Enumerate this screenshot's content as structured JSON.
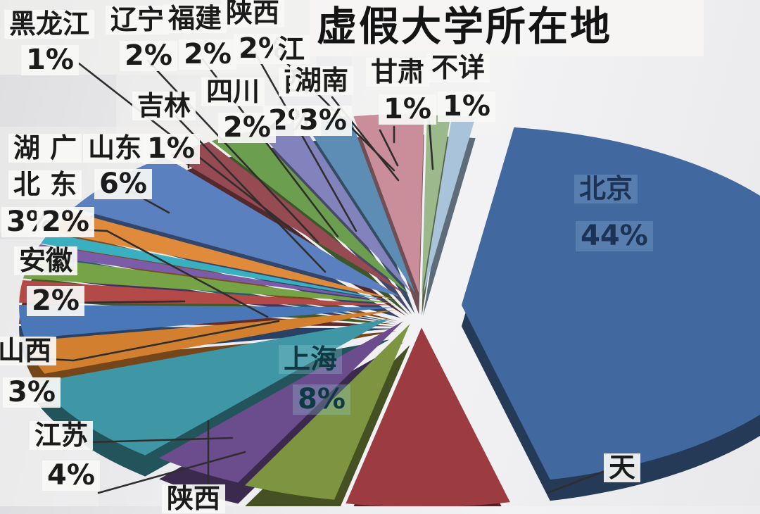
{
  "title": "虚假大学所在地",
  "chart_data": {
    "type": "pie",
    "style": "3d-exploded-pie",
    "title": "虚假大学所在地",
    "unit": "%",
    "legend_position": "none",
    "labels_outside_with_leader_lines": true,
    "slices": [
      {
        "name": "北京",
        "value": 44,
        "pct": "44%",
        "color": "#41699f"
      },
      {
        "name": "天津",
        "value": 7,
        "pct": "",
        "color": "#9c3b40"
      },
      {
        "name": "陕西",
        "value": 4,
        "pct": "",
        "color": "#7d9440"
      },
      {
        "name": "江苏",
        "value": 4,
        "pct": "4%",
        "color": "#6b4d8e"
      },
      {
        "name": "上海",
        "value": 8,
        "pct": "8%",
        "color": "#3f97a6"
      },
      {
        "name": "山西",
        "value": 3,
        "pct": "3%",
        "color": "#d2802f"
      },
      {
        "name": "湖北",
        "value": 3,
        "pct": "3%",
        "color": "#4a77b8"
      },
      {
        "name": "安徽",
        "value": 2,
        "pct": "2%",
        "color": "#b34a47"
      },
      {
        "name": "广东",
        "value": 2,
        "pct": "2%",
        "color": "#76a345"
      },
      {
        "name": "吉林",
        "value": 1,
        "pct": "1%",
        "color": "#7b5ca9"
      },
      {
        "name": "黑龙江",
        "value": 1,
        "pct": "1%",
        "color": "#3aafc0"
      },
      {
        "name": "辽宁",
        "value": 2,
        "pct": "2%",
        "color": "#e08a3c"
      },
      {
        "name": "山东",
        "value": 6,
        "pct": "6%",
        "color": "#5b80c0"
      },
      {
        "name": "福建",
        "value": 2,
        "pct": "2%",
        "color": "#964a52"
      },
      {
        "name": "陕西",
        "value": 2,
        "pct": "2%",
        "color": "#6b9e4e"
      },
      {
        "name": "四川",
        "value": 2,
        "pct": "2%",
        "color": "#8283bd"
      },
      {
        "name": "江西",
        "value": 2,
        "pct": "2%",
        "color": "#5d8cb5"
      },
      {
        "name": "湖南",
        "value": 3,
        "pct": "3%",
        "color": "#c98e99"
      },
      {
        "name": "甘肃",
        "value": 1,
        "pct": "1%",
        "color": "#9cb98b"
      },
      {
        "name": "不详",
        "value": 1,
        "pct": "1%",
        "color": "#a9c4da"
      }
    ]
  },
  "colors": {
    "background": "#ebebed",
    "leader_line": "#2f2e2c",
    "label_box": "#f6f5f3",
    "label_text": "#1b1b1b",
    "title_text": "#141414",
    "beijing_label_text": "#1c3355",
    "shanghai_label_text": "#0f3a45"
  }
}
